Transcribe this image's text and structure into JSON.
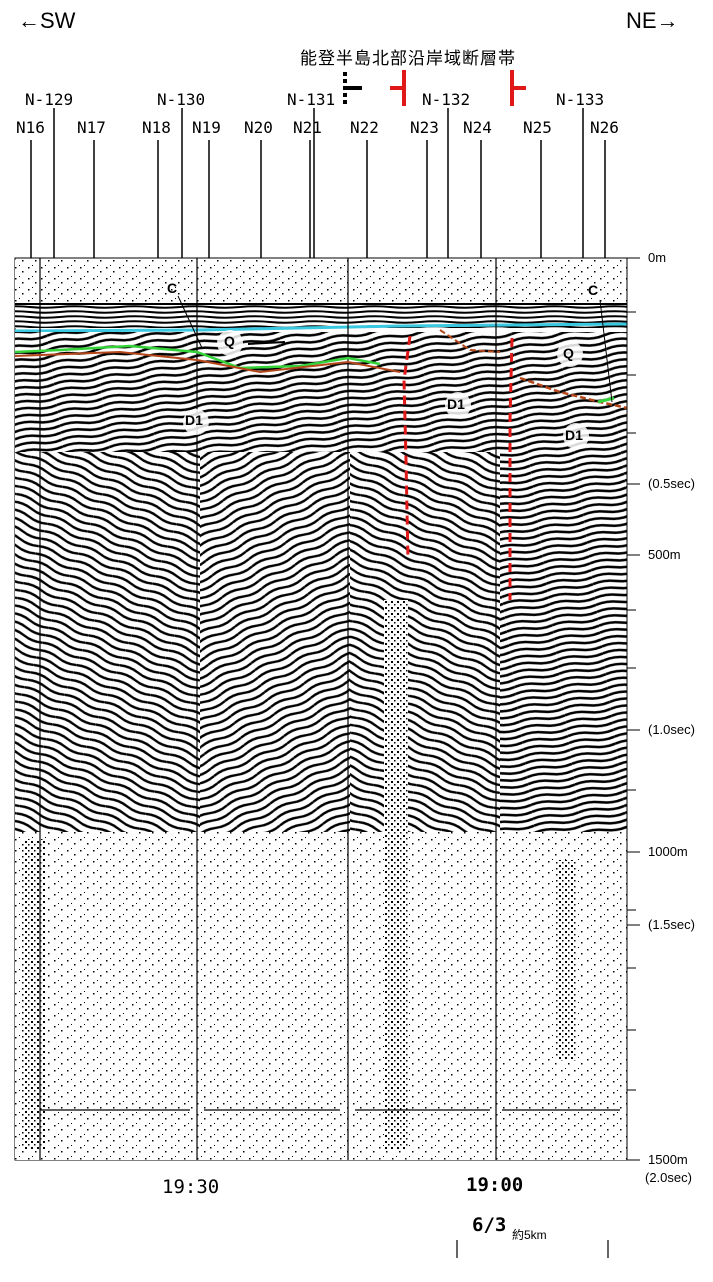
{
  "header": {
    "sw_label": "←SW",
    "ne_label": "NE→",
    "fault_name": "能登半島北部沿岸域断層帯"
  },
  "survey_lines": [
    "N-129",
    "N-130",
    "N-131",
    "N-132",
    "N-133"
  ],
  "shot_points": [
    "N16",
    "N17",
    "N18",
    "N19",
    "N20",
    "N21",
    "N22",
    "N23",
    "N24",
    "N25",
    "N26"
  ],
  "depth_axis": {
    "labels": [
      "0m",
      "(0.5sec)",
      "500m",
      "(1.0sec)",
      "1000m",
      "(1.5sec)",
      "1500m",
      "(2.0sec)"
    ]
  },
  "unit_labels": [
    "C",
    "Q",
    "D1",
    "D1",
    "D1",
    "Q",
    "C"
  ],
  "time_labels": [
    "19:30",
    "19:00",
    "6/3"
  ],
  "scale_bar": {
    "label": "約5km"
  },
  "colors": {
    "seafloor": "#39c8e0",
    "unconformity_green": "#35d23a",
    "reflector_brown": "#b5471a",
    "fault_red": "#e01818"
  }
}
